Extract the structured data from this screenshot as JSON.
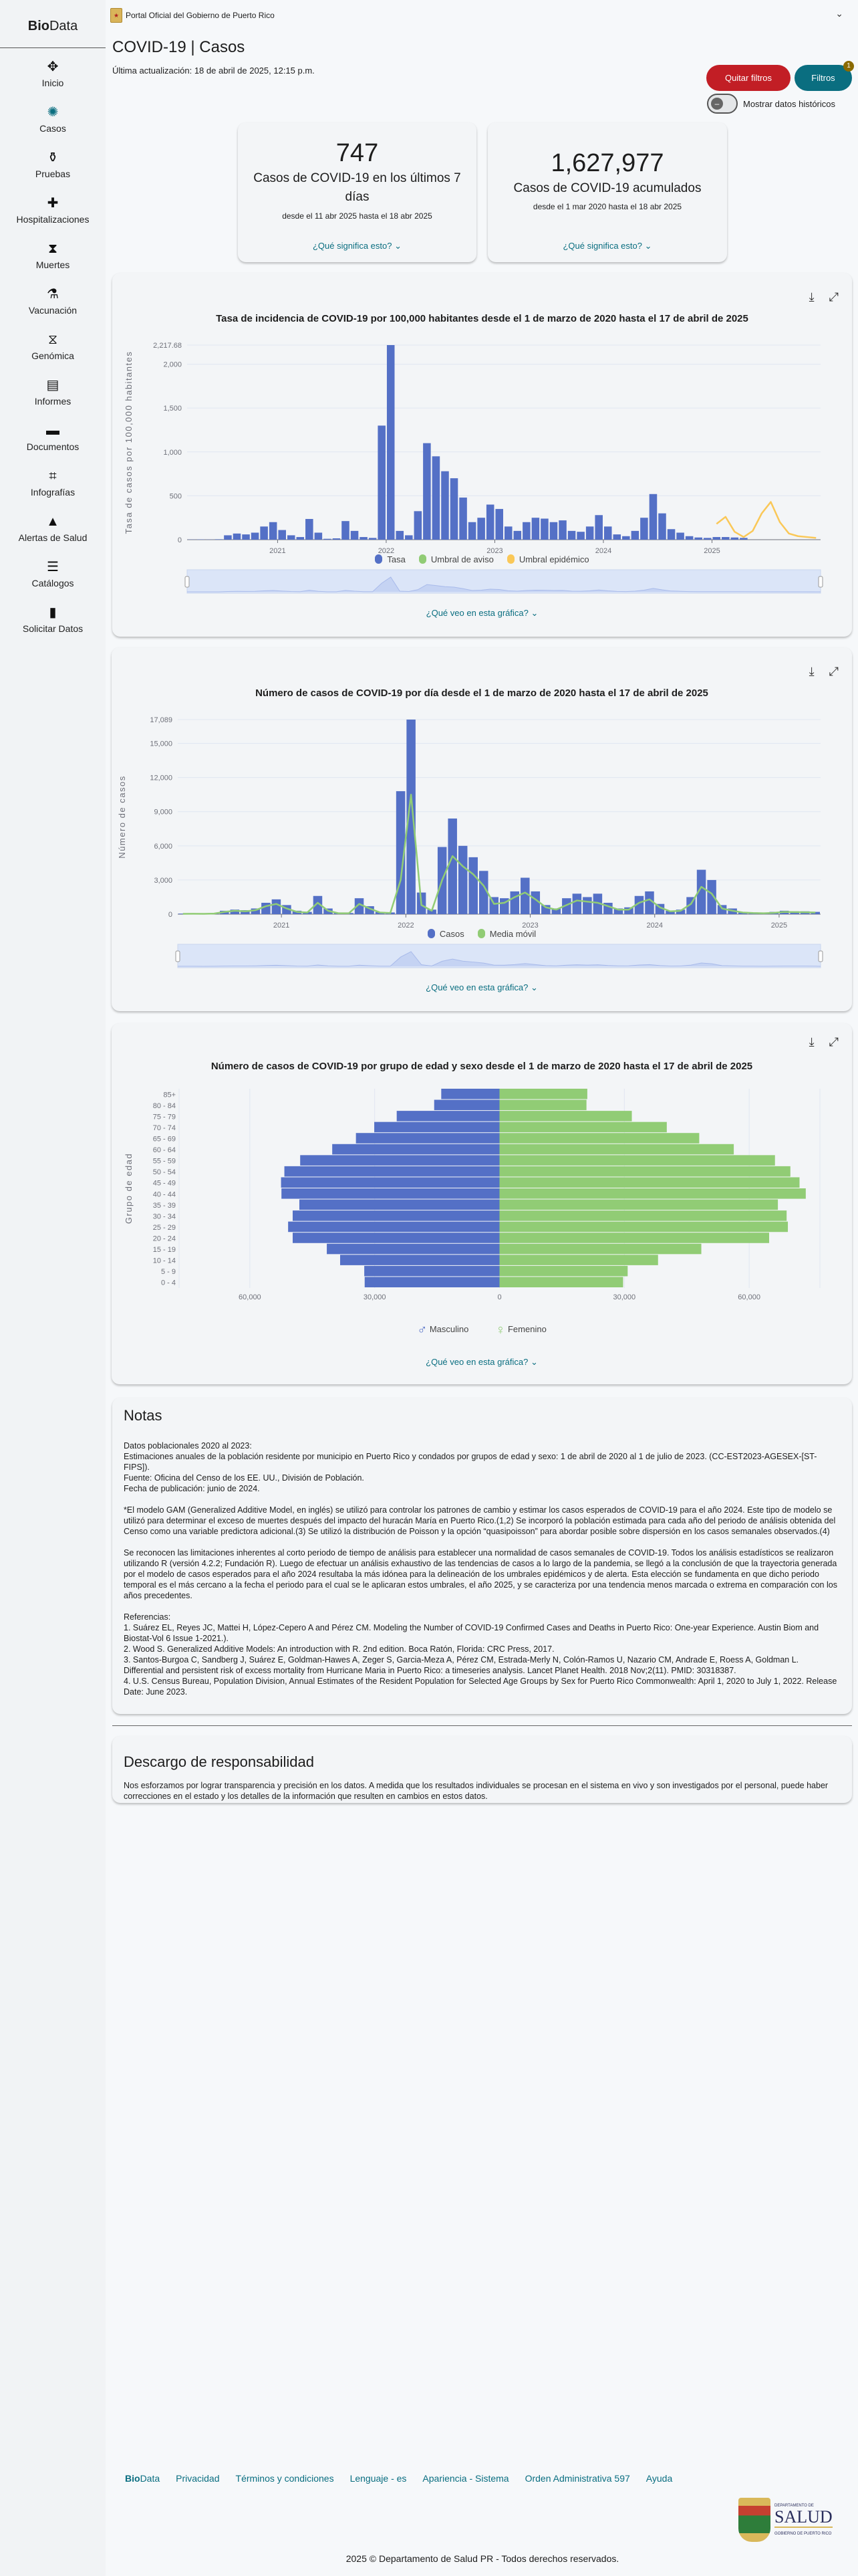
{
  "colors": {
    "accent": "#0a6e80",
    "danger": "#c21e25",
    "series_blue": "#5470c6",
    "series_green": "#91cc75",
    "series_yellow": "#fac858"
  },
  "sidebar": {
    "brand_bold": "Bio",
    "brand_rest": "Data",
    "items": [
      {
        "label": "Inicio",
        "icon": "virus-icon"
      },
      {
        "label": "Casos",
        "icon": "virus-cases-icon"
      },
      {
        "label": "Pruebas",
        "icon": "test-tube-icon"
      },
      {
        "label": "Hospitalizaciones",
        "icon": "hospital-icon"
      },
      {
        "label": "Muertes",
        "icon": "hourglass-icon"
      },
      {
        "label": "Vacunación",
        "icon": "vaccine-icon"
      },
      {
        "label": "Genómica",
        "icon": "dna-icon"
      },
      {
        "label": "Informes",
        "icon": "book-icon"
      },
      {
        "label": "Documentos",
        "icon": "document-icon"
      },
      {
        "label": "Infografías",
        "icon": "infographic-icon"
      },
      {
        "label": "Alertas de Salud",
        "icon": "warning-icon"
      },
      {
        "label": "Catálogos",
        "icon": "database-icon"
      },
      {
        "label": "Solicitar Datos",
        "icon": "request-document-icon"
      }
    ]
  },
  "header": {
    "portal": "Portal Oficial del Gobierno de Puerto Rico",
    "title": "COVID-19 | Casos",
    "updated": "Última actualización: 18 de abril de 2025, 12:15 p.m."
  },
  "filters": {
    "clear": "Quitar filtros",
    "filters": "Filtros",
    "badge": "1",
    "toggle_label": "Mostrar datos históricos",
    "toggle_on": false
  },
  "stats": [
    {
      "value": "747",
      "label": "Casos de COVID-19 en los últimos 7 días",
      "range": "desde el 11 abr 2025 hasta el 18 abr 2025",
      "link": "¿Qué significa esto?"
    },
    {
      "value": "1,627,977",
      "label": "Casos de COVID-19 acumulados",
      "range": "desde el 1 mar 2020 hasta el 18 abr 2025",
      "link": "¿Qué significa esto?"
    }
  ],
  "chart_link": "¿Qué veo en esta gráfica?",
  "chart_data": [
    {
      "type": "bar",
      "title": "Tasa de incidencia de COVID-19 por 100,000 habitantes desde el 1 de marzo de 2020 hasta el 17 de abril de 2025",
      "ylabel": "Tasa de casos por 100,000 habitantes",
      "ylim": [
        0,
        2217.68
      ],
      "yticks": [
        "0",
        "500",
        "1,000",
        "1,500",
        "2,000",
        "2,217.68"
      ],
      "ytick_values": [
        0,
        500,
        1000,
        1500,
        2000,
        2217.68
      ],
      "xrange": [
        "2020-03",
        "2025-12"
      ],
      "xticks": [
        "2021",
        "2022",
        "2023",
        "2024",
        "2025"
      ],
      "grid": true,
      "legend": [
        "Tasa",
        "Umbral de aviso",
        "Umbral epidémico"
      ],
      "legend_placement": "bottom",
      "series": [
        {
          "name": "Tasa",
          "kind": "bar",
          "x": [
            "2020-03",
            "2020-04",
            "2020-05",
            "2020-06",
            "2020-07",
            "2020-08",
            "2020-09",
            "2020-10",
            "2020-11",
            "2020-12",
            "2021-01",
            "2021-02",
            "2021-03",
            "2021-04",
            "2021-05",
            "2021-06",
            "2021-07",
            "2021-08",
            "2021-09",
            "2021-10",
            "2021-11",
            "2021-12",
            "2022-01",
            "2022-02",
            "2022-03",
            "2022-04",
            "2022-05",
            "2022-06",
            "2022-07",
            "2022-08",
            "2022-09",
            "2022-10",
            "2022-11",
            "2022-12",
            "2023-01",
            "2023-02",
            "2023-03",
            "2023-04",
            "2023-05",
            "2023-06",
            "2023-07",
            "2023-08",
            "2023-09",
            "2023-10",
            "2023-11",
            "2023-12",
            "2024-01",
            "2024-02",
            "2024-03",
            "2024-04",
            "2024-05",
            "2024-06",
            "2024-07",
            "2024-08",
            "2024-09",
            "2024-10",
            "2024-11",
            "2024-12",
            "2025-01",
            "2025-02",
            "2025-03",
            "2025-04"
          ],
          "values": [
            2,
            3,
            2,
            5,
            50,
            70,
            60,
            80,
            150,
            200,
            110,
            50,
            30,
            236,
            80,
            10,
            15,
            212,
            100,
            30,
            20,
            1300,
            2217.68,
            100,
            50,
            325,
            1100,
            950,
            780,
            700,
            480,
            200,
            250,
            400,
            350,
            150,
            100,
            200,
            250,
            240,
            200,
            220,
            100,
            90,
            150,
            280,
            150,
            60,
            40,
            100,
            250,
            520,
            300,
            120,
            80,
            40,
            25,
            20,
            30,
            30,
            25,
            20
          ]
        },
        {
          "name": "Umbral epidémico",
          "kind": "line",
          "x": [
            "2025-01",
            "2025-02",
            "2025-03",
            "2025-04",
            "2025-05",
            "2025-06",
            "2025-07",
            "2025-08",
            "2025-09",
            "2025-10",
            "2025-11",
            "2025-12"
          ],
          "values": [
            180,
            260,
            90,
            30,
            100,
            300,
            430,
            200,
            70,
            40,
            30,
            20
          ]
        }
      ],
      "navigator": true
    },
    {
      "type": "bar",
      "title": "Número de casos de COVID-19 por día desde el 1 de marzo de 2020 hasta el 17 de abril de 2025",
      "ylabel": "Número de casos",
      "ylim": [
        0,
        17089
      ],
      "yticks": [
        "0",
        "3,000",
        "6,000",
        "9,000",
        "12,000",
        "15,000",
        "17,089"
      ],
      "ytick_values": [
        0,
        3000,
        6000,
        9000,
        12000,
        15000,
        17089
      ],
      "xrange": [
        "2020-03",
        "2025-04"
      ],
      "xticks": [
        "2021",
        "2022",
        "2023",
        "2024",
        "2025"
      ],
      "grid": true,
      "legend": [
        "Casos",
        "Media móvil"
      ],
      "legend_placement": "bottom",
      "x": [
        "2020-03",
        "2020-04",
        "2020-05",
        "2020-06",
        "2020-07",
        "2020-08",
        "2020-09",
        "2020-10",
        "2020-11",
        "2020-12",
        "2021-01",
        "2021-02",
        "2021-03",
        "2021-04",
        "2021-05",
        "2021-06",
        "2021-07",
        "2021-08",
        "2021-09",
        "2021-10",
        "2021-11",
        "2021-12",
        "2022-01",
        "2022-02",
        "2022-03",
        "2022-04",
        "2022-05",
        "2022-06",
        "2022-07",
        "2022-08",
        "2022-09",
        "2022-10",
        "2022-11",
        "2022-12",
        "2023-01",
        "2023-02",
        "2023-03",
        "2023-04",
        "2023-05",
        "2023-06",
        "2023-07",
        "2023-08",
        "2023-09",
        "2023-10",
        "2023-11",
        "2023-12",
        "2024-01",
        "2024-02",
        "2024-03",
        "2024-04",
        "2024-05",
        "2024-06",
        "2024-07",
        "2024-08",
        "2024-09",
        "2024-10",
        "2024-11",
        "2024-12",
        "2025-01",
        "2025-02",
        "2025-03",
        "2025-04"
      ],
      "series": [
        {
          "name": "Casos",
          "kind": "bar",
          "values": [
            50,
            60,
            40,
            80,
            300,
            400,
            350,
            500,
            1000,
            1300,
            800,
            300,
            200,
            1600,
            500,
            100,
            100,
            1400,
            700,
            200,
            150,
            10800,
            17089,
            1900,
            400,
            5900,
            8400,
            6000,
            5000,
            3800,
            1500,
            1400,
            2000,
            3200,
            2000,
            800,
            500,
            1400,
            1800,
            1500,
            1800,
            1000,
            500,
            600,
            1600,
            2000,
            900,
            300,
            400,
            1500,
            3900,
            3000,
            800,
            500,
            200,
            150,
            100,
            200,
            300,
            250,
            250,
            200
          ]
        },
        {
          "name": "Media móvil",
          "kind": "line",
          "values": [
            30,
            40,
            30,
            50,
            200,
            300,
            250,
            350,
            700,
            900,
            500,
            200,
            150,
            1000,
            300,
            80,
            80,
            900,
            500,
            150,
            100,
            3000,
            10500,
            800,
            300,
            3000,
            5100,
            4200,
            3500,
            2500,
            900,
            1000,
            1500,
            1900,
            1300,
            600,
            400,
            800,
            1200,
            1100,
            1000,
            700,
            400,
            400,
            1000,
            1300,
            600,
            250,
            300,
            900,
            2400,
            1800,
            500,
            300,
            150,
            100,
            80,
            120,
            200,
            180,
            170,
            150
          ]
        }
      ],
      "navigator": true
    },
    {
      "type": "bar",
      "orientation": "horizontal-pyramid",
      "title": "Número de casos de COVID-19 por grupo de edad y sexo desde el 1 de marzo de 2020 hasta el 17 de abril de 2025",
      "ylabel": "Grupo de edad",
      "xticks": [
        "60,000",
        "30,000",
        "0",
        "30,000",
        "60,000"
      ],
      "xtick_values": [
        -60000,
        -30000,
        0,
        30000,
        60000
      ],
      "xlim": [
        -77000,
        77000
      ],
      "grid": true,
      "legend_placement": "bottom",
      "categories": [
        "85+",
        "80 - 84",
        "75 - 79",
        "70 - 74",
        "65 - 69",
        "60 - 64",
        "55 - 59",
        "50 - 54",
        "45 - 49",
        "40 - 44",
        "35 - 39",
        "30 - 34",
        "25 - 29",
        "20 - 24",
        "15 - 19",
        "10 - 14",
        "5 - 9",
        "0 - 4"
      ],
      "series": [
        {
          "name": "Masculino",
          "icon": "male-icon",
          "values": [
            14000,
            15700,
            24700,
            30100,
            34500,
            40200,
            47900,
            51700,
            52500,
            52400,
            48100,
            49700,
            50800,
            49700,
            41500,
            38300,
            32500,
            32400
          ]
        },
        {
          "name": "Femenino",
          "icon": "female-icon",
          "values": [
            21100,
            20900,
            31800,
            40200,
            48000,
            56300,
            66200,
            69900,
            72100,
            73600,
            66900,
            69000,
            69300,
            64800,
            48500,
            38100,
            30800,
            29700
          ]
        }
      ]
    }
  ],
  "notes": {
    "title": "Notas",
    "paragraphs": [
      [
        "Datos poblacionales 2020 al 2023:",
        "Estimaciones anuales de la población residente por municipio en Puerto Rico y condados por grupos de edad y sexo: 1 de abril de 2020 al 1 de julio de 2023. (CC-EST2023-AGESEX-[ST-FIPS]).",
        "Fuente: Oficina del Censo de los EE. UU., División de Población.",
        "Fecha de publicación: junio de 2024."
      ],
      [
        "*El modelo GAM (Generalized Additive Model, en inglés) se utilizó para controlar los patrones de cambio y estimar los casos esperados de COVID-19 para el año 2024. Este tipo de modelo se utilizó para determinar el exceso de muertes después del impacto del huracán María en Puerto Rico.(1,2) Se incorporó la población estimada para cada año del periodo de análisis obtenida del Censo como una variable predictora adicional.(3) Se utilizó la distribución de Poisson y la opción “quasipoisson” para abordar posible sobre dispersión en los casos semanales observados.(4)"
      ],
      [
        "Se reconocen las limitaciones inherentes al corto periodo de tiempo de análisis para establecer una normalidad de casos semanales de COVID-19. Todos los análisis estadísticos se realizaron utilizando R (versión 4.2.2; Fundación R). Luego de efectuar un análisis exhaustivo de las tendencias de casos a lo largo de la pandemia, se llegó a la conclusión de que la trayectoria generada por el modelo de casos esperados para el año 2024 resultaba la más idónea para la delineación de los umbrales epidémicos y de alerta. Esta elección se fundamenta en que dicho periodo temporal es el más cercano a la fecha el periodo para el cual se le aplicaran estos umbrales, el año 2025, y se caracteriza por una tendencia menos marcada o extrema en comparación con los años precedentes."
      ],
      [
        "Referencias:",
        "1. Suárez EL, Reyes JC, Mattei H, López-Cepero A and Pérez CM. Modeling the Number of COVID-19 Confirmed Cases and Deaths in Puerto Rico: One-year Experience. Austin Biom and Biostat-Vol 6 Issue 1-2021.).",
        "2. Wood S. Generalized Additive Models: An introduction with R. 2nd edition. Boca Ratón, Florida: CRC Press, 2017.",
        "3. Santos-Burgoa C, Sandberg J, Suárez E, Goldman-Hawes A, Zeger S, Garcia-Meza A, Pérez CM, Estrada-Merly N, Colón-Ramos U, Nazario CM, Andrade E, Roess A, Goldman L. Differential and persistent risk of excess mortality from Hurricane Maria in Puerto Rico: a timeseries analysis. Lancet Planet Health. 2018 Nov;2(11). PMID: 30318387.",
        "4. U.S. Census Bureau, Population Division, Annual Estimates of the Resident Population for Selected Age Groups by Sex for Puerto Rico Commonwealth: April 1, 2020 to July 1, 2022. Release Date: June 2023."
      ]
    ]
  },
  "disclaimer": {
    "title": "Descargo de responsabilidad",
    "text": "Nos esforzamos por lograr transparencia y precisión en los datos. A medida que los resultados individuales se procesan en el sistema en vivo y son investigados por el personal, puede haber correcciones en el estado y los detalles de la información que resulten en cambios en estos datos."
  },
  "footer": {
    "brand_bold": "Bio",
    "brand_rest": "Data",
    "links": [
      "Privacidad",
      "Términos y condiciones",
      "Lenguaje - es",
      "Apariencia - Sistema",
      "Orden Administrativa 597",
      "Ayuda"
    ],
    "logo": {
      "top": "DEPARTAMENTO DE",
      "main": "SALUD",
      "bottom": "GOBIERNO DE PUERTO RICO"
    },
    "copyright": "2025 © Departamento de Salud PR - Todos derechos reservados."
  }
}
